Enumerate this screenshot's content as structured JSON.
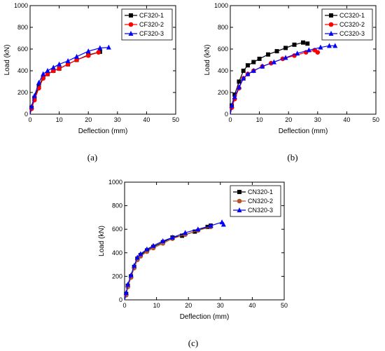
{
  "chart_data": [
    {
      "type": "line",
      "panel_label": "(a)",
      "xlabel": "Deflection (mm)",
      "ylabel": "Load (kN)",
      "xlim": [
        0,
        50
      ],
      "ylim": [
        0,
        1000
      ],
      "xticks": [
        0,
        10,
        20,
        30,
        40,
        50
      ],
      "yticks": [
        0,
        200,
        400,
        600,
        800,
        1000
      ],
      "legend_position": "top-right",
      "series": [
        {
          "name": "CF320-1",
          "color": "#000000",
          "marker": "square",
          "x": [
            0,
            0.5,
            1.5,
            3,
            4.5,
            6,
            8,
            10,
            13,
            16,
            20,
            24
          ],
          "y": [
            0,
            60,
            150,
            260,
            340,
            370,
            400,
            420,
            460,
            500,
            545,
            575
          ]
        },
        {
          "name": "CF320-2",
          "color": "#ff0000",
          "marker": "circle",
          "x": [
            0,
            0.5,
            1.5,
            3,
            4.5,
            6,
            8,
            10,
            13,
            16,
            20,
            23.5
          ],
          "y": [
            0,
            50,
            130,
            240,
            330,
            370,
            400,
            420,
            460,
            500,
            540,
            570
          ]
        },
        {
          "name": "CF320-3",
          "color": "#0000ff",
          "marker": "triangle",
          "x": [
            0,
            0.5,
            1.5,
            3,
            4.5,
            6,
            8,
            10,
            13,
            16,
            20,
            24,
            27
          ],
          "y": [
            0,
            70,
            170,
            290,
            370,
            400,
            430,
            460,
            490,
            530,
            580,
            610,
            615
          ]
        }
      ]
    },
    {
      "type": "line",
      "panel_label": "(b)",
      "xlabel": "Deflection (mm)",
      "ylabel": "Load (kN)",
      "xlim": [
        0,
        50
      ],
      "ylim": [
        0,
        1000
      ],
      "xticks": [
        0,
        10,
        20,
        30,
        40,
        50
      ],
      "yticks": [
        0,
        200,
        400,
        600,
        800,
        1000
      ],
      "legend_position": "top-right",
      "series": [
        {
          "name": "CC320-1",
          "color": "#000000",
          "marker": "square",
          "x": [
            0,
            0.5,
            1.5,
            3,
            4.5,
            6,
            8,
            10,
            13,
            16,
            19,
            22,
            25,
            26.5
          ],
          "y": [
            0,
            80,
            180,
            300,
            400,
            450,
            480,
            510,
            550,
            580,
            610,
            640,
            660,
            650
          ]
        },
        {
          "name": "CC320-2",
          "color": "#ff0000",
          "marker": "circle",
          "x": [
            0,
            0.5,
            1.5,
            3,
            4.5,
            6,
            8,
            11,
            14,
            18,
            22,
            26,
            29,
            30
          ],
          "y": [
            0,
            60,
            140,
            240,
            330,
            370,
            400,
            440,
            470,
            510,
            540,
            570,
            590,
            570
          ]
        },
        {
          "name": "CC320-3",
          "color": "#0000ff",
          "marker": "triangle",
          "x": [
            0,
            0.5,
            1.5,
            3,
            4.5,
            6,
            8,
            11,
            15,
            19,
            23,
            27,
            31,
            34,
            36
          ],
          "y": [
            0,
            80,
            160,
            250,
            330,
            370,
            400,
            440,
            480,
            520,
            560,
            590,
            615,
            630,
            630
          ]
        }
      ]
    },
    {
      "type": "line",
      "panel_label": "(c)",
      "xlabel": "Deflection (mm)",
      "ylabel": "Load (kN)",
      "xlim": [
        0,
        50
      ],
      "ylim": [
        0,
        1000
      ],
      "xticks": [
        0,
        10,
        20,
        30,
        40,
        50
      ],
      "yticks": [
        0,
        200,
        400,
        600,
        800,
        1000
      ],
      "legend_position": "top-right",
      "series": [
        {
          "name": "CN320-1",
          "color": "#000000",
          "marker": "square",
          "x": [
            0,
            0.5,
            1,
            2,
            3,
            4,
            5,
            7,
            9,
            12,
            15,
            18,
            22,
            26,
            27
          ],
          "y": [
            0,
            50,
            120,
            200,
            280,
            350,
            380,
            420,
            450,
            490,
            530,
            545,
            580,
            620,
            630
          ]
        },
        {
          "name": "CN320-2",
          "color": "#b5542a",
          "marker": "circle",
          "x": [
            0,
            0.5,
            1,
            2,
            3,
            4,
            5,
            7,
            9,
            12,
            15,
            19,
            23,
            27
          ],
          "y": [
            0,
            40,
            110,
            190,
            270,
            340,
            370,
            410,
            440,
            480,
            520,
            555,
            590,
            620
          ]
        },
        {
          "name": "CN320-3",
          "color": "#0000ff",
          "marker": "triangle",
          "x": [
            0,
            0.5,
            1,
            2,
            3,
            4,
            5,
            7,
            9,
            12,
            15,
            19,
            23,
            27,
            30.5,
            31
          ],
          "y": [
            0,
            60,
            130,
            210,
            290,
            360,
            390,
            430,
            460,
            500,
            530,
            570,
            600,
            630,
            660,
            640
          ]
        }
      ]
    }
  ]
}
